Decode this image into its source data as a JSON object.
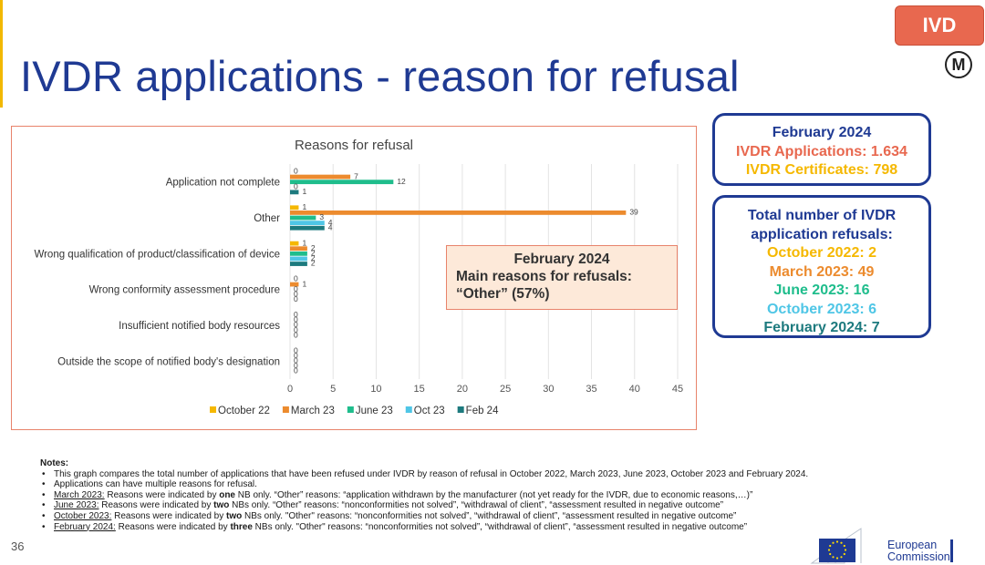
{
  "slide": {
    "title": "IVDR applications - reason for refusal",
    "badge": "IVD",
    "m_icon": "M",
    "page_number": "36"
  },
  "colors": {
    "October 22": "#f5b800",
    "March 23": "#ec8b2e",
    "June 23": "#1fbd8c",
    "Oct 23": "#4fc6e6",
    "Feb 24": "#1d7a7e",
    "title": "#1f3a93",
    "border": "#e8836b"
  },
  "chart_data": {
    "type": "bar",
    "orientation": "horizontal",
    "title": "Reasons for refusal",
    "categories": [
      "Application not complete",
      "Other",
      "Wrong qualification of product/classification of device",
      "Wrong conformity assessment procedure",
      "Insufficient notified body resources",
      "Outside the scope of notified body's designation"
    ],
    "series": [
      {
        "name": "October 22",
        "values": [
          0,
          1,
          1,
          0,
          0,
          0
        ]
      },
      {
        "name": "March 23",
        "values": [
          7,
          39,
          2,
          1,
          0,
          0
        ]
      },
      {
        "name": "June 23",
        "values": [
          12,
          3,
          2,
          0,
          0,
          0
        ]
      },
      {
        "name": "Oct 23",
        "values": [
          0,
          4,
          2,
          0,
          0,
          0
        ]
      },
      {
        "name": "Feb 24",
        "values": [
          1,
          4,
          2,
          0,
          0,
          0
        ]
      }
    ],
    "data_labels": [
      [
        "0",
        "7",
        "12",
        "0",
        "1"
      ],
      [
        "1",
        "39",
        "3",
        "4",
        "4"
      ],
      [
        "1",
        "2",
        "2",
        "2",
        "2"
      ],
      [
        "0",
        "1",
        "0",
        "0",
        "0"
      ],
      [
        "0",
        "0",
        "0",
        "0",
        "0"
      ],
      [
        "0",
        "0",
        "0",
        "0",
        "0"
      ]
    ],
    "xlim": [
      0,
      45
    ],
    "xticks": [
      0,
      5,
      10,
      15,
      20,
      25,
      30,
      35,
      40,
      45
    ],
    "grid": true,
    "legend_position": "bottom",
    "xlabel": "",
    "ylabel": ""
  },
  "annotation": {
    "line1": "February 2024",
    "line2": "Main reasons for refusals:",
    "line3": "“Other” (57%)"
  },
  "summary_box": {
    "heading": "February 2024",
    "applications": "IVDR Applications: 1.634",
    "certificates": "IVDR Certificates: 798",
    "applications_color": "#e8684f",
    "certificates_color": "#f5b800"
  },
  "refusals_box": {
    "heading_line1": "Total number of IVDR",
    "heading_line2": "application refusals:",
    "rows": [
      {
        "text": "October 2022: 2",
        "color": "#f5b800"
      },
      {
        "text": "March 2023: 49",
        "color": "#ec8b2e"
      },
      {
        "text": "June 2023: 16",
        "color": "#1fbd8c"
      },
      {
        "text": "October 2023: 6",
        "color": "#4fc6e6"
      },
      {
        "text": "February 2024: 7",
        "color": "#1d7a7e"
      }
    ]
  },
  "notes": {
    "header": "Notes:",
    "n1": "This graph compares the total number of applications that have been refused under IVDR by reason of refusal in October 2022, March 2023, June 2023, October 2023 and February 2024.",
    "n2": "Applications can have multiple reasons for refusal.",
    "n3_label": "March 2023:",
    "n3_a": " Reasons were indicated by ",
    "n3_b": "one",
    "n3_c": " NB only. “Other” reasons: “application withdrawn by the manufacturer (not yet ready for the IVDR, due to economic reasons,…)”",
    "n4_label": "June 2023:",
    "n4_a": "  Reasons were indicated by ",
    "n4_b": "two",
    "n4_c": " NBs only. “Other” reasons: “nonconformities not solved”, “withdrawal of client”, “assessment resulted in negative outcome”",
    "n5_label": "October 2023:",
    "n5_a": " Reasons were indicated by ",
    "n5_b": "two",
    "n5_c": " NBs only. \"Other\" reasons: “nonconformities not solved”, “withdrawal of client”, “assessment resulted in negative outcome”",
    "n6_label": "February 2024:",
    "n6_a": " Reasons were indicated by ",
    "n6_b": "three",
    "n6_c": " NBs only. \"Other\" reasons: “nonconformities not solved”, “withdrawal of client”, “assessment resulted in negative outcome”"
  },
  "logo": {
    "line1": "European",
    "line2": "Commission"
  }
}
